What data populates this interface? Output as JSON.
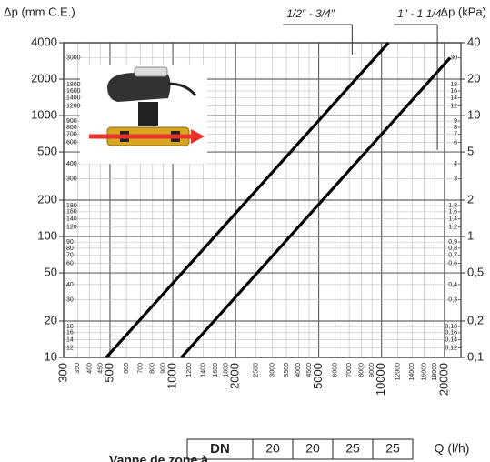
{
  "chart_data": {
    "type": "line",
    "y_label": "Δp (mm C.E.)",
    "y2_label": "Δp (kPa)",
    "log_x": true,
    "log_y": true,
    "grid": true,
    "xlim": [
      300,
      24000
    ],
    "xticks": [
      300,
      500,
      1000,
      2000,
      5000,
      10000,
      20000
    ],
    "xminor_ticks": [
      350,
      400,
      450,
      600,
      700,
      800,
      900,
      1200,
      1400,
      1600,
      1800,
      2500,
      3000,
      3500,
      4000,
      4500,
      6000,
      7000,
      8000,
      9000,
      12000,
      14000,
      16000,
      18000
    ],
    "ylim": [
      10,
      4000
    ],
    "yticks": [
      10,
      20,
      50,
      100,
      200,
      500,
      1000,
      2000,
      4000
    ],
    "yminor_ticks": [
      12,
      14,
      16,
      18,
      30,
      40,
      60,
      70,
      80,
      90,
      120,
      140,
      160,
      180,
      300,
      400,
      600,
      700,
      800,
      900,
      1200,
      1400,
      1600,
      1800,
      3000
    ],
    "y2lim": [
      0.1,
      40
    ],
    "y2ticks": [
      {
        "value": 0.1,
        "label": "0,1"
      },
      {
        "value": 0.2,
        "label": "0,2"
      },
      {
        "value": 0.5,
        "label": "0,5"
      },
      1,
      2,
      5,
      10,
      20,
      40
    ],
    "y2minor_ticks": [
      {
        "value": 0.12,
        "label": "0,12"
      },
      {
        "value": 0.14,
        "label": "0,14"
      },
      {
        "value": 0.16,
        "label": "0,16"
      },
      {
        "value": 0.18,
        "label": "0,18"
      },
      {
        "value": 0.3,
        "label": "0,3"
      },
      {
        "value": 0.4,
        "label": "0,4"
      },
      {
        "value": 0.6,
        "label": "0,6"
      },
      {
        "value": 0.7,
        "label": "0,7"
      },
      {
        "value": 0.8,
        "label": "0,8"
      },
      {
        "value": 0.9,
        "label": "0,9"
      },
      {
        "value": 1.2,
        "label": "1,2"
      },
      {
        "value": 1.4,
        "label": "1,4"
      },
      {
        "value": 1.6,
        "label": "1,6"
      },
      {
        "value": 1.8,
        "label": "1,8"
      },
      3,
      4,
      6,
      7,
      8,
      9,
      12,
      14,
      16,
      18,
      30
    ],
    "series": [
      {
        "name": "1/2″ - 3/4″",
        "color": "#000000",
        "x": [
          480,
          10800
        ],
        "values": [
          10,
          4000
        ]
      },
      {
        "name": "1″ - 1 1/4″",
        "color": "#000000",
        "x": [
          1100,
          21300
        ],
        "values": [
          10,
          3000
        ]
      }
    ]
  },
  "table": {
    "header": "DN",
    "cells": [
      "20",
      "20",
      "25",
      "25"
    ],
    "unit": "Q (l/h)"
  },
  "caption": "Vanne de zone à"
}
